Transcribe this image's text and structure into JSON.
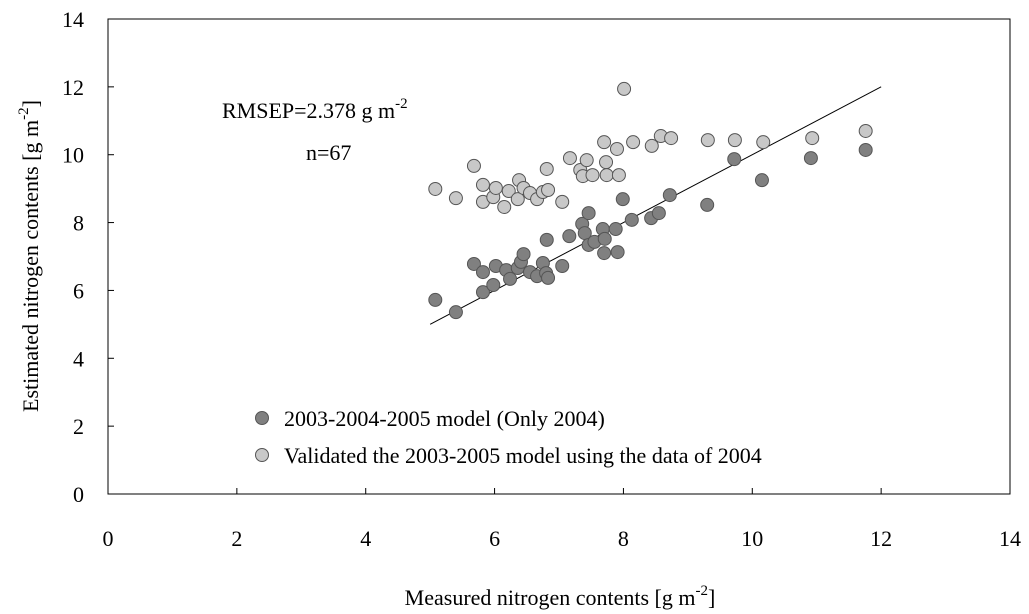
{
  "chart_data": {
    "type": "scatter",
    "annotations": [
      {
        "text": "RMSEP=2.378 g m",
        "sup": "-2"
      },
      {
        "text": "n=67"
      }
    ],
    "x_label": {
      "text": "Measured nitrogen contents [g m",
      "sup": "-2",
      "after": "]"
    },
    "y_label": {
      "text": "Estimated nitrogen contents [g m",
      "sup": "-2",
      "after": "]"
    },
    "xlim": [
      0,
      14
    ],
    "xticks": [
      0,
      2,
      4,
      6,
      8,
      10,
      12,
      14
    ],
    "ylim": [
      0,
      14
    ],
    "yticks": [
      0,
      2,
      4,
      6,
      8,
      10,
      12,
      14
    ],
    "reference_line": {
      "x": [
        5,
        12
      ],
      "y": [
        5,
        12
      ]
    },
    "series": [
      {
        "name": "2003-2004-2005 model (Only 2004)",
        "color": "#808080",
        "x": [
          5.08,
          5.4,
          5.68,
          5.82,
          5.82,
          5.98,
          6.02,
          6.18,
          6.24,
          6.36,
          6.41,
          6.45,
          6.55,
          6.66,
          6.75,
          6.8,
          6.83,
          6.81,
          7.05,
          7.16,
          7.36,
          7.4,
          7.46,
          7.46,
          7.55,
          7.68,
          7.7,
          7.71,
          7.88,
          7.91,
          7.99,
          8.13,
          8.43,
          8.55,
          8.72,
          9.3,
          9.72,
          10.15,
          10.91,
          11.76
        ],
        "values": [
          5.72,
          5.36,
          6.78,
          6.54,
          5.95,
          6.16,
          6.72,
          6.6,
          6.34,
          6.66,
          6.84,
          7.07,
          6.54,
          6.42,
          6.81,
          6.51,
          6.37,
          7.49,
          6.72,
          7.6,
          7.96,
          7.69,
          8.28,
          7.34,
          7.43,
          7.81,
          7.1,
          7.52,
          7.81,
          7.13,
          8.69,
          8.08,
          8.13,
          8.28,
          8.81,
          8.52,
          9.87,
          9.25,
          9.9,
          10.14
        ]
      },
      {
        "name": "Validated the 2003-2005 model using the data of 2004",
        "color": "#c8c8c8",
        "x": [
          5.08,
          5.4,
          5.68,
          5.82,
          5.82,
          5.98,
          6.02,
          6.15,
          6.22,
          6.36,
          6.38,
          6.45,
          6.55,
          6.66,
          6.75,
          6.81,
          6.83,
          7.05,
          7.17,
          7.33,
          7.37,
          7.43,
          7.52,
          7.7,
          7.73,
          7.74,
          7.9,
          7.93,
          8.01,
          8.15,
          8.44,
          8.58,
          8.74,
          9.31,
          9.73,
          10.17,
          10.93,
          11.76
        ],
        "values": [
          8.99,
          8.72,
          9.67,
          9.11,
          8.61,
          8.75,
          9.02,
          8.46,
          8.93,
          8.69,
          9.25,
          9.02,
          8.87,
          8.69,
          8.9,
          9.58,
          8.96,
          8.61,
          9.9,
          9.55,
          9.37,
          9.84,
          9.4,
          10.37,
          9.78,
          9.4,
          10.17,
          9.4,
          11.94,
          10.37,
          10.26,
          10.55,
          10.49,
          10.43,
          10.43,
          10.37,
          10.49,
          10.7
        ]
      }
    ]
  }
}
